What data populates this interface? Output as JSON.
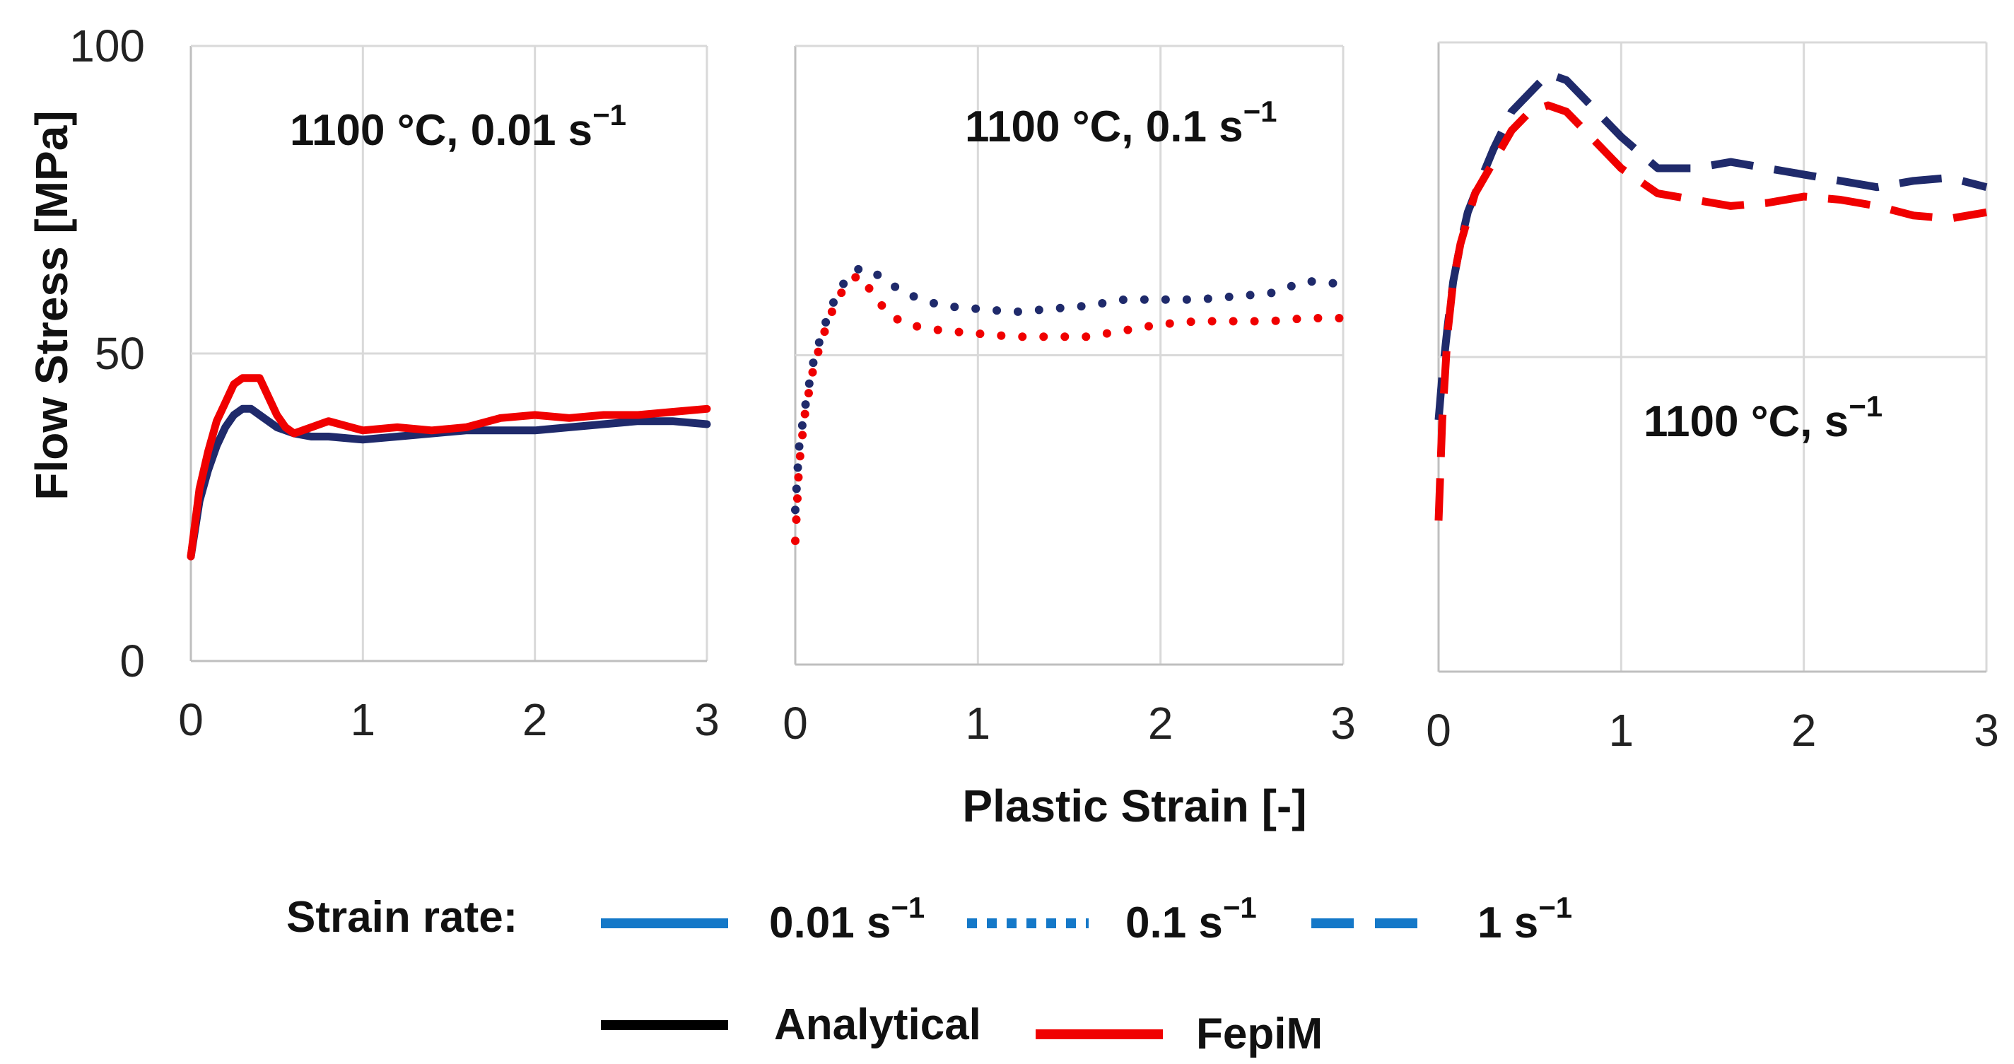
{
  "chart_data": [
    {
      "type": "line",
      "annotation": "1100 °C, 0.01 s",
      "annotation_sup": "−1",
      "ylabel": "Flow Stress [MPa]",
      "xlabel": "",
      "xlim": [
        0,
        3
      ],
      "ylim": [
        0,
        100
      ],
      "x_ticks": [
        "0",
        "1",
        "2",
        "3"
      ],
      "y_ticks": [
        "0",
        "50",
        "100"
      ],
      "grid": true,
      "series": [
        {
          "name": "Analytical",
          "color": "#1f2a6b",
          "dash": "solid",
          "x": [
            0,
            0.05,
            0.1,
            0.15,
            0.2,
            0.25,
            0.3,
            0.35,
            0.4,
            0.5,
            0.6,
            0.7,
            0.8,
            1.0,
            1.2,
            1.4,
            1.6,
            1.8,
            2.0,
            2.2,
            2.4,
            2.6,
            2.8,
            3.0
          ],
          "y": [
            17,
            26,
            31,
            35,
            38,
            40,
            41,
            41,
            40,
            38,
            37,
            36.5,
            36.5,
            36,
            36.5,
            37,
            37.5,
            37.5,
            37.5,
            38,
            38.5,
            39,
            39,
            38.5
          ]
        },
        {
          "name": "FepiM",
          "color": "#f00000",
          "dash": "solid",
          "x": [
            0,
            0.05,
            0.1,
            0.15,
            0.2,
            0.25,
            0.3,
            0.35,
            0.4,
            0.45,
            0.5,
            0.55,
            0.6,
            0.7,
            0.8,
            1.0,
            1.2,
            1.4,
            1.6,
            1.8,
            2.0,
            2.2,
            2.4,
            2.6,
            2.8,
            3.0
          ],
          "y": [
            17,
            28,
            34,
            39,
            42,
            45,
            46,
            46,
            46,
            43,
            40,
            38,
            37,
            38,
            39,
            37.5,
            38,
            37.5,
            38,
            39.5,
            40,
            39.5,
            40,
            40,
            40.5,
            41
          ]
        }
      ]
    },
    {
      "type": "line",
      "annotation": "1100 °C, 0.1 s",
      "annotation_sup": "−1",
      "xlabel": "Plastic Strain [-]",
      "ylabel": "",
      "xlim": [
        0,
        3
      ],
      "ylim": [
        0,
        100
      ],
      "x_ticks": [
        "0",
        "1",
        "2",
        "3"
      ],
      "grid": true,
      "series": [
        {
          "name": "Analytical",
          "color": "#1f2a6b",
          "dash": "dotted",
          "x": [
            0,
            0.02,
            0.05,
            0.08,
            0.1,
            0.15,
            0.2,
            0.25,
            0.3,
            0.35,
            0.4,
            0.5,
            0.6,
            0.8,
            1.0,
            1.2,
            1.4,
            1.6,
            1.8,
            2.0,
            2.2,
            2.4,
            2.6,
            2.8,
            3.0
          ],
          "y": [
            25,
            35,
            41,
            46,
            49,
            54,
            58,
            61,
            63,
            64,
            64,
            62,
            60,
            58,
            57.5,
            57,
            57.5,
            58,
            59,
            59,
            59,
            59.5,
            60,
            62,
            61.5
          ]
        },
        {
          "name": "FepiM",
          "color": "#f00000",
          "dash": "dotted",
          "x": [
            0,
            0.02,
            0.05,
            0.08,
            0.1,
            0.15,
            0.2,
            0.25,
            0.3,
            0.35,
            0.4,
            0.45,
            0.5,
            0.6,
            0.8,
            1.0,
            1.2,
            1.4,
            1.6,
            1.8,
            2.0,
            2.2,
            2.4,
            2.6,
            2.8,
            3.0
          ],
          "y": [
            20,
            32,
            40,
            45,
            48,
            53,
            57,
            60,
            62,
            63,
            61,
            59,
            57,
            55,
            54,
            53.5,
            53,
            53,
            53,
            54,
            55,
            55.5,
            55.5,
            55.5,
            56,
            56
          ]
        }
      ]
    },
    {
      "type": "line",
      "annotation": "1100 °C, s",
      "annotation_sup": "−1",
      "xlabel": "",
      "ylabel": "",
      "xlim": [
        0,
        3
      ],
      "ylim": [
        0,
        100
      ],
      "x_ticks": [
        "0",
        "1",
        "2",
        "3"
      ],
      "grid": true,
      "series": [
        {
          "name": "Analytical",
          "color": "#1f2a6b",
          "dash": "dashed",
          "x": [
            0,
            0.02,
            0.05,
            0.08,
            0.12,
            0.16,
            0.2,
            0.3,
            0.4,
            0.5,
            0.6,
            0.7,
            0.8,
            1.0,
            1.2,
            1.4,
            1.6,
            1.8,
            2.0,
            2.2,
            2.4,
            2.6,
            2.8,
            3.0
          ],
          "y": [
            40,
            47,
            55,
            62,
            68,
            73,
            76,
            83,
            89,
            92,
            95,
            94,
            91,
            85,
            80,
            80,
            81,
            80,
            79,
            78,
            77,
            78,
            78.5,
            77
          ]
        },
        {
          "name": "FepiM",
          "color": "#f00000",
          "dash": "dashed",
          "x": [
            0,
            0.02,
            0.05,
            0.08,
            0.12,
            0.16,
            0.2,
            0.3,
            0.4,
            0.5,
            0.6,
            0.7,
            0.8,
            1.0,
            1.2,
            1.4,
            1.6,
            1.8,
            2.0,
            2.2,
            2.4,
            2.6,
            2.8,
            3.0
          ],
          "y": [
            24,
            40,
            54,
            62,
            68,
            72,
            76,
            81,
            86,
            89,
            90,
            89,
            86,
            80,
            76,
            75,
            74,
            74.5,
            75.5,
            75,
            74,
            72.5,
            72,
            73
          ]
        }
      ]
    }
  ],
  "legend": {
    "strain_rate_label": "Strain rate:",
    "items": [
      {
        "label": "0.01 s",
        "sup": "−1",
        "dash": "solid",
        "color": "#1478c8"
      },
      {
        "label": "0.1 s",
        "sup": "−1",
        "dash": "dotted",
        "color": "#1478c8"
      },
      {
        "label": "1 s",
        "sup": "−1",
        "dash": "dashed",
        "color": "#1478c8"
      }
    ],
    "methods": [
      {
        "label": "Analytical",
        "color": "#000000"
      },
      {
        "label": "FepiM",
        "color": "#f00000"
      }
    ]
  }
}
